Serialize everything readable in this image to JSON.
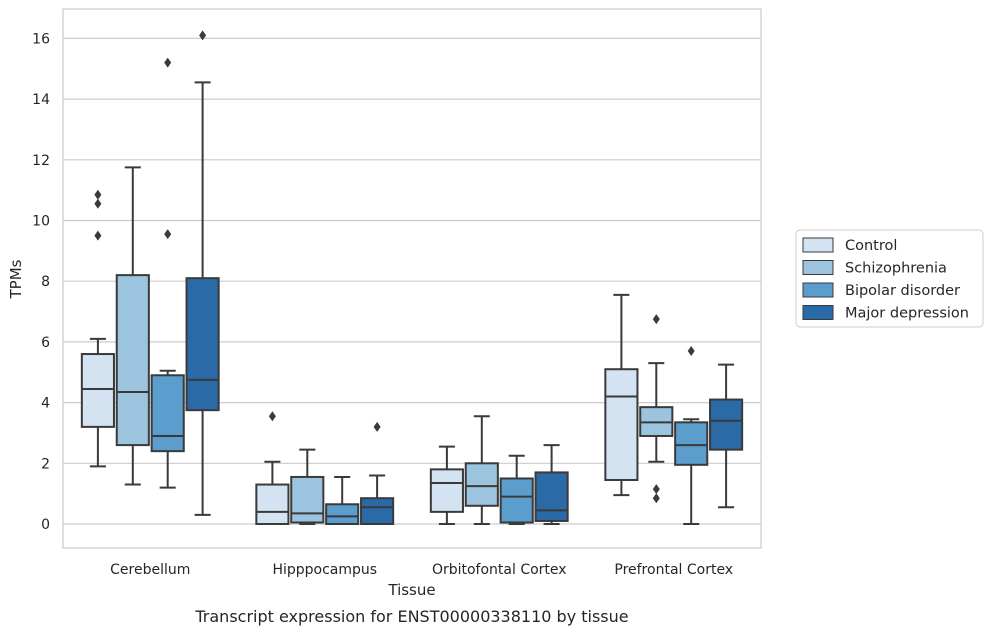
{
  "caption": "Transcript expression for ENST00000338110 by tissue",
  "chart_data": {
    "type": "box",
    "xlabel": "Tissue",
    "ylabel": "TPMs",
    "ylim": [
      -0.8,
      16.9
    ],
    "yticks": [
      0,
      2,
      4,
      6,
      8,
      10,
      12,
      14,
      16
    ],
    "grid": "horizontal",
    "legend_position": "right",
    "categories": [
      "Cerebellum",
      "Hipppocampus",
      "Orbitofontal Cortex",
      "Prefrontal Cortex"
    ],
    "series": [
      {
        "name": "Control",
        "color": "#d3e3f2",
        "boxes": [
          {
            "whislo": 1.9,
            "q1": 3.2,
            "med": 4.45,
            "q3": 5.6,
            "whishi": 6.1,
            "fliers": [
              9.5,
              10.55,
              10.85
            ]
          },
          {
            "whislo": 0.0,
            "q1": 0.0,
            "med": 0.4,
            "q3": 1.3,
            "whishi": 2.05,
            "fliers": [
              3.55
            ]
          },
          {
            "whislo": 0.0,
            "q1": 0.4,
            "med": 1.35,
            "q3": 1.8,
            "whishi": 2.55,
            "fliers": []
          },
          {
            "whislo": 0.95,
            "q1": 1.45,
            "med": 4.2,
            "q3": 5.1,
            "whishi": 7.55,
            "fliers": []
          }
        ]
      },
      {
        "name": "Schizophrenia",
        "color": "#9cc4de",
        "boxes": [
          {
            "whislo": 1.3,
            "q1": 2.6,
            "med": 4.35,
            "q3": 8.2,
            "whishi": 11.75,
            "fliers": []
          },
          {
            "whislo": 0.0,
            "q1": 0.05,
            "med": 0.35,
            "q3": 1.55,
            "whishi": 2.45,
            "fliers": []
          },
          {
            "whislo": 0.0,
            "q1": 0.6,
            "med": 1.25,
            "q3": 2.0,
            "whishi": 3.55,
            "fliers": []
          },
          {
            "whislo": 2.05,
            "q1": 2.9,
            "med": 3.35,
            "q3": 3.85,
            "whishi": 5.3,
            "fliers": [
              0.85,
              1.15,
              6.75
            ]
          }
        ]
      },
      {
        "name": "Bipolar disorder",
        "color": "#5b9dcc",
        "boxes": [
          {
            "whislo": 1.2,
            "q1": 2.4,
            "med": 2.9,
            "q3": 4.9,
            "whishi": 5.05,
            "fliers": [
              9.55,
              15.2
            ]
          },
          {
            "whislo": 0.0,
            "q1": 0.0,
            "med": 0.25,
            "q3": 0.65,
            "whishi": 1.55,
            "fliers": []
          },
          {
            "whislo": 0.0,
            "q1": 0.05,
            "med": 0.9,
            "q3": 1.5,
            "whishi": 2.25,
            "fliers": []
          },
          {
            "whislo": 0.0,
            "q1": 1.95,
            "med": 2.6,
            "q3": 3.35,
            "whishi": 3.45,
            "fliers": [
              5.7
            ]
          }
        ]
      },
      {
        "name": "Major depression",
        "color": "#2a6aa6",
        "boxes": [
          {
            "whislo": 0.3,
            "q1": 3.75,
            "med": 4.75,
            "q3": 8.1,
            "whishi": 14.55,
            "fliers": [
              16.1
            ]
          },
          {
            "whislo": 0.0,
            "q1": 0.0,
            "med": 0.55,
            "q3": 0.85,
            "whishi": 1.6,
            "fliers": [
              3.2
            ]
          },
          {
            "whislo": 0.0,
            "q1": 0.1,
            "med": 0.45,
            "q3": 1.7,
            "whishi": 2.6,
            "fliers": []
          },
          {
            "whislo": 0.55,
            "q1": 2.45,
            "med": 3.4,
            "q3": 4.1,
            "whishi": 5.25,
            "fliers": []
          }
        ]
      }
    ]
  }
}
